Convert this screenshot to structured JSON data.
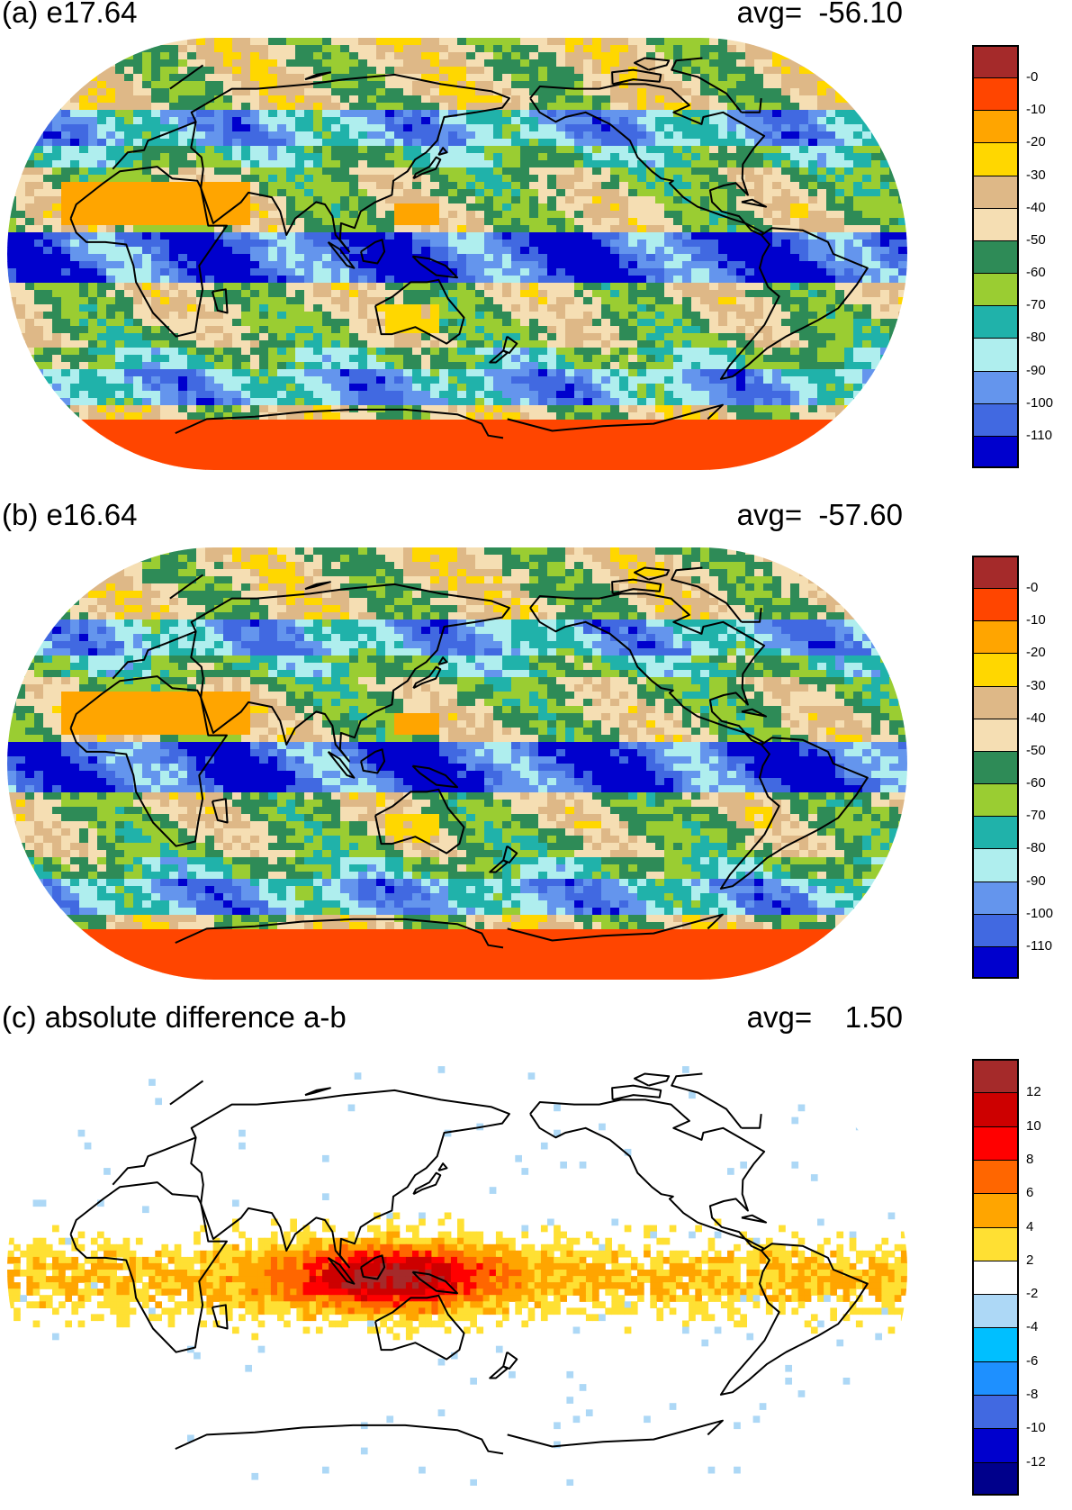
{
  "panels": [
    {
      "id": "a",
      "title": "(a) e17.64",
      "avg_label": "avg=  -56.10",
      "colorbar": {
        "colors": [
          "#a52a2a",
          "#ff4500",
          "#ffa500",
          "#ffd700",
          "#deb887",
          "#f5deb3",
          "#2e8b57",
          "#9acd32",
          "#20b2aa",
          "#afeeee",
          "#6495ed",
          "#4169e1",
          "#0000cd"
        ],
        "labels": [
          "-0",
          "-10",
          "-20",
          "-30",
          "-40",
          "-50",
          "-60",
          "-70",
          "-80",
          "-90",
          "-100",
          "-110"
        ]
      }
    },
    {
      "id": "b",
      "title": "(b) e16.64",
      "avg_label": "avg=  -57.60",
      "colorbar": {
        "colors": [
          "#a52a2a",
          "#ff4500",
          "#ffa500",
          "#ffd700",
          "#deb887",
          "#f5deb3",
          "#2e8b57",
          "#9acd32",
          "#20b2aa",
          "#afeeee",
          "#6495ed",
          "#4169e1",
          "#0000cd"
        ],
        "labels": [
          "-0",
          "-10",
          "-20",
          "-30",
          "-40",
          "-50",
          "-60",
          "-70",
          "-80",
          "-90",
          "-100",
          "-110"
        ]
      }
    },
    {
      "id": "c",
      "title": "(c) absolute difference a-b",
      "avg_label": "avg=    1.50",
      "colorbar": {
        "colors": [
          "#a52a2a",
          "#cd0000",
          "#ff0000",
          "#ff6600",
          "#ffa500",
          "#ffe033",
          "#ffffff",
          "#add8f6",
          "#00bfff",
          "#1e90ff",
          "#4169e1",
          "#0000cd",
          "#00008b"
        ],
        "labels": [
          "12",
          "10",
          "8",
          "6",
          "4",
          "2",
          "-2",
          "-4",
          "-6",
          "-8",
          "-10",
          "-12"
        ]
      }
    }
  ]
}
